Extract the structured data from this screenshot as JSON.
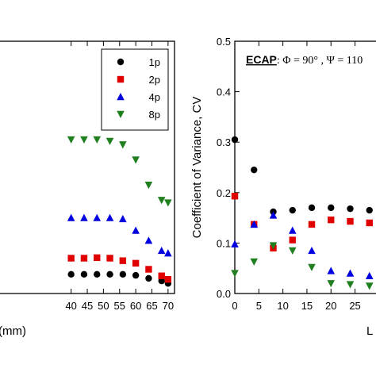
{
  "chart_data": [
    {
      "type": "scatter",
      "xlabel": "(mm)",
      "ylabel": "",
      "xlim": [
        17,
        72
      ],
      "ylim": [
        0,
        0.5
      ],
      "xticks": [
        40,
        45,
        50,
        55,
        60,
        65,
        70
      ],
      "xtick_labels": [
        "40",
        "45",
        "50",
        "55",
        "60",
        "65",
        "70"
      ],
      "legend": {
        "placement": "top-right",
        "entries": [
          "1p",
          "2p",
          "4p",
          "8p"
        ]
      },
      "series": [
        {
          "name": "1p",
          "color": "#000000",
          "marker": "circle",
          "x": [
            40,
            44,
            48,
            52,
            56,
            60,
            64,
            68,
            70
          ],
          "y": [
            0.038,
            0.038,
            0.038,
            0.038,
            0.038,
            0.036,
            0.03,
            0.025,
            0.02
          ]
        },
        {
          "name": "2p",
          "color": "#e00000",
          "marker": "square",
          "x": [
            40,
            44,
            48,
            52,
            56,
            60,
            64,
            68,
            70
          ],
          "y": [
            0.07,
            0.07,
            0.071,
            0.07,
            0.065,
            0.06,
            0.048,
            0.035,
            0.028
          ]
        },
        {
          "name": "4p",
          "color": "#0000e0",
          "marker": "triangle-up",
          "x": [
            40,
            44,
            48,
            52,
            56,
            60,
            64,
            68,
            70
          ],
          "y": [
            0.15,
            0.15,
            0.15,
            0.15,
            0.148,
            0.125,
            0.105,
            0.085,
            0.08
          ]
        },
        {
          "name": "8p",
          "color": "#208020",
          "marker": "triangle-down",
          "x": [
            40,
            44,
            48,
            52,
            56,
            60,
            64,
            68,
            70
          ],
          "y": [
            0.305,
            0.305,
            0.305,
            0.302,
            0.295,
            0.265,
            0.215,
            0.185,
            0.18
          ]
        }
      ]
    },
    {
      "type": "scatter",
      "xlabel": "L",
      "ylabel": "Coefficient of Variance, CV",
      "xlim": [
        0,
        32
      ],
      "ylim": [
        0,
        0.5
      ],
      "xticks": [
        0,
        5,
        10,
        15,
        20,
        25
      ],
      "xtick_labels": [
        "0",
        "5",
        "10",
        "15",
        "20",
        "25"
      ],
      "yticks": [
        0,
        0.1,
        0.2,
        0.3,
        0.4,
        0.5
      ],
      "ytick_labels": [
        "0.0",
        "0.1",
        "0.2",
        "0.3",
        "0.4",
        "0.5"
      ],
      "annotation": {
        "bold": "ECAP",
        "rest": ": Φ = 90° , Ψ = 110"
      },
      "series": [
        {
          "name": "1p",
          "color": "#000000",
          "marker": "circle",
          "x": [
            0,
            4,
            8,
            12,
            16,
            20,
            24,
            28
          ],
          "y": [
            0.305,
            0.245,
            0.162,
            0.165,
            0.17,
            0.17,
            0.168,
            0.165
          ]
        },
        {
          "name": "2p",
          "color": "#e00000",
          "marker": "square",
          "x": [
            0,
            4,
            8,
            12,
            16,
            20,
            24,
            28
          ],
          "y": [
            0.193,
            0.137,
            0.09,
            0.106,
            0.137,
            0.146,
            0.143,
            0.14
          ]
        },
        {
          "name": "4p",
          "color": "#0000e0",
          "marker": "triangle-up",
          "x": [
            0,
            4,
            8,
            12,
            16,
            20,
            24,
            28
          ],
          "y": [
            0.098,
            0.137,
            0.155,
            0.125,
            0.085,
            0.045,
            0.04,
            0.035
          ]
        },
        {
          "name": "8p",
          "color": "#208020",
          "marker": "triangle-down",
          "x": [
            0,
            4,
            8,
            12,
            16,
            20,
            24,
            28
          ],
          "y": [
            0.04,
            0.063,
            0.095,
            0.085,
            0.052,
            0.02,
            0.018,
            0.015
          ]
        }
      ]
    }
  ]
}
